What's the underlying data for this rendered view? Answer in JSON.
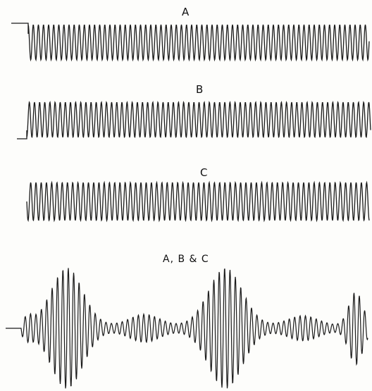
{
  "diagram": {
    "labels": {
      "a": "A",
      "b": "B",
      "c": "C",
      "combined": "A, B & C"
    },
    "ink_color": "#1a1a1a",
    "paper_color": "#fdfdfb",
    "traces": [
      {
        "id": "a",
        "has_step_start": true,
        "description_cycles": 67
      },
      {
        "id": "b",
        "has_step_start": true,
        "description_cycles": 67
      },
      {
        "id": "c",
        "has_step_start": false,
        "description_cycles": 65
      },
      {
        "id": "combined",
        "has_step_start": true,
        "description_cycles": 64
      }
    ]
  }
}
